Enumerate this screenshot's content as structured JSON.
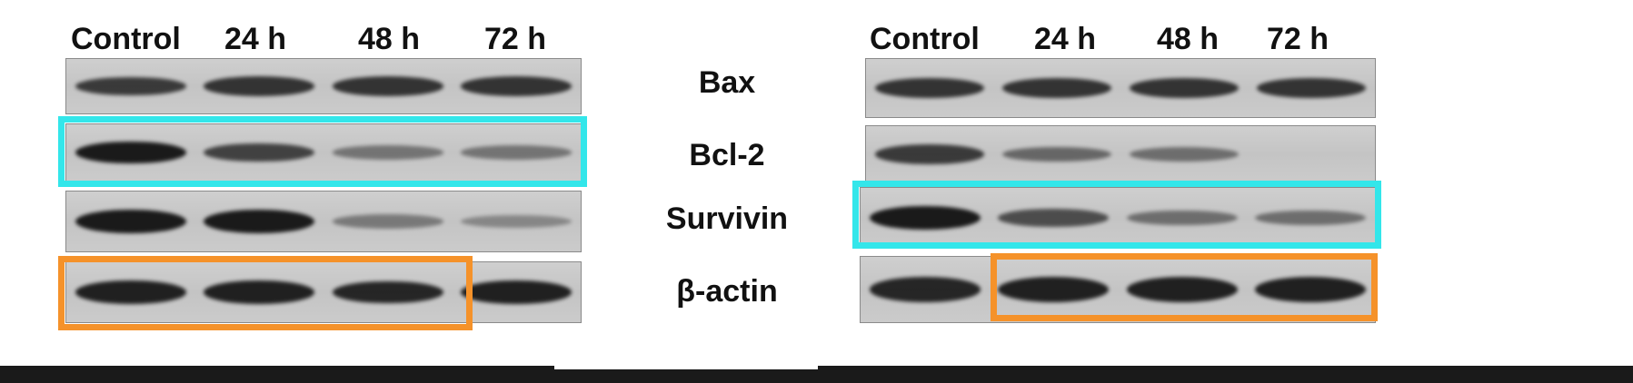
{
  "left_panel": {
    "lanes": [
      "Control",
      "24 h",
      "48 h",
      "72 h"
    ]
  },
  "right_panel": {
    "lanes": [
      "Control",
      "24 h",
      "48 h",
      "72 h"
    ]
  },
  "proteins": [
    "Bax",
    "Bcl-2",
    "Survivin",
    "β-actin"
  ],
  "colors": {
    "highlight_cyan": "#33e6ea",
    "highlight_orange": "#f5922a",
    "membrane": "#c9c9c9",
    "band": "#1a1a1a"
  },
  "band_intensity": {
    "left": {
      "Bax": [
        0.75,
        0.8,
        0.8,
        0.8
      ],
      "Bcl-2": [
        1.0,
        0.7,
        0.3,
        0.3
      ],
      "Survivin": [
        1.0,
        1.0,
        0.25,
        0.15
      ],
      "β-actin": [
        0.95,
        0.95,
        0.9,
        0.95
      ]
    },
    "right": {
      "Bax": [
        0.8,
        0.8,
        0.8,
        0.8
      ],
      "Bcl-2": [
        0.75,
        0.4,
        0.35,
        0.0
      ],
      "Survivin": [
        1.0,
        0.6,
        0.35,
        0.35
      ],
      "β-actin": [
        0.9,
        0.95,
        0.95,
        0.95
      ]
    }
  }
}
